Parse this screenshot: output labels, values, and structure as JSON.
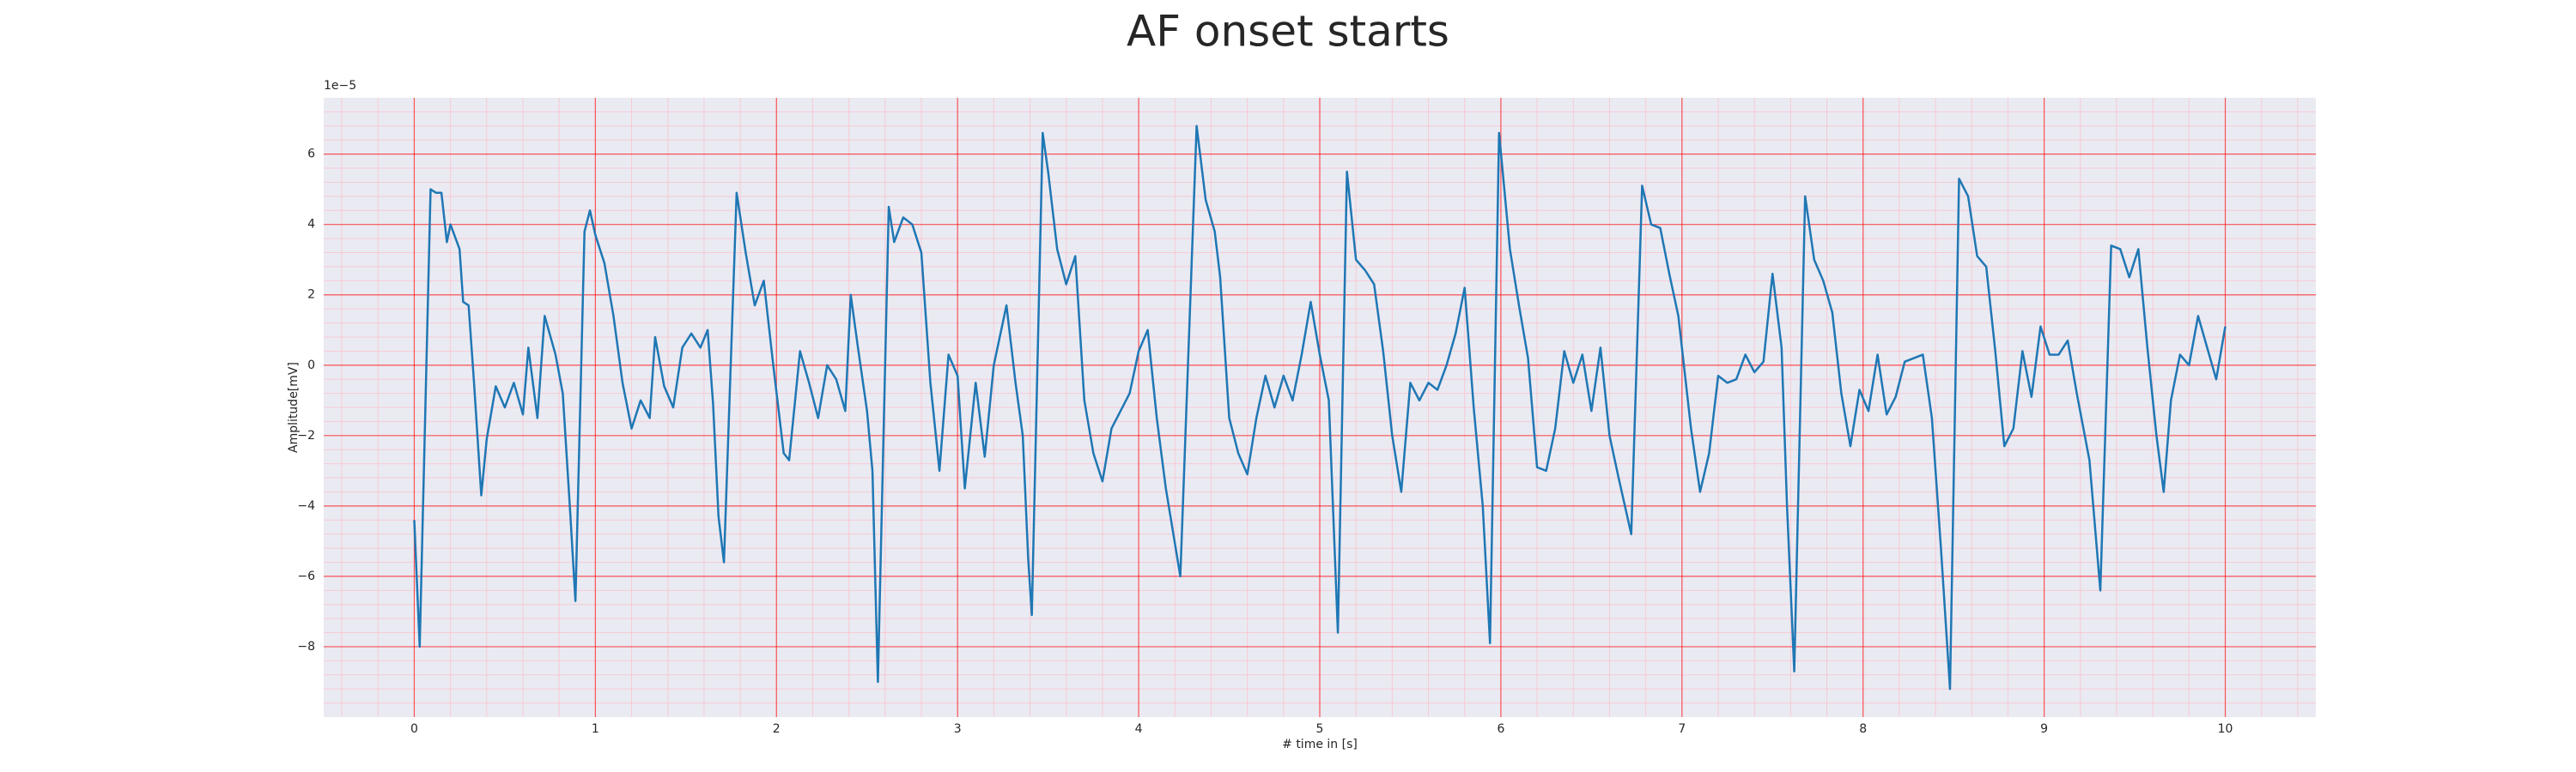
{
  "chart_data": {
    "type": "line",
    "title": "AF onset starts",
    "x_label": "# time in [s]",
    "y_label": "Amplitude[mV]",
    "y_offset_label": "1e−5",
    "x": [
      0,
      0.03,
      0.09,
      0.12,
      0.15,
      0.18,
      0.2,
      0.25,
      0.27,
      0.3,
      0.33,
      0.37,
      0.4,
      0.45,
      0.5,
      0.55,
      0.6,
      0.63,
      0.68,
      0.72,
      0.78,
      0.82,
      0.86,
      0.89,
      0.94,
      0.97,
      1.0,
      1.05,
      1.1,
      1.15,
      1.2,
      1.25,
      1.3,
      1.33,
      1.38,
      1.43,
      1.48,
      1.53,
      1.58,
      1.62,
      1.65,
      1.68,
      1.71,
      1.78,
      1.83,
      1.88,
      1.93,
      1.98,
      2.04,
      2.07,
      2.13,
      2.18,
      2.23,
      2.28,
      2.33,
      2.38,
      2.41,
      2.45,
      2.5,
      2.53,
      2.56,
      2.62,
      2.65,
      2.7,
      2.75,
      2.8,
      2.85,
      2.9,
      2.95,
      3.0,
      3.04,
      3.1,
      3.15,
      3.2,
      3.27,
      3.32,
      3.36,
      3.39,
      3.41,
      3.47,
      3.5,
      3.55,
      3.6,
      3.65,
      3.7,
      3.75,
      3.8,
      3.85,
      3.9,
      3.95,
      4.0,
      4.05,
      4.1,
      4.15,
      4.23,
      4.32,
      4.37,
      4.42,
      4.45,
      4.5,
      4.55,
      4.6,
      4.65,
      4.7,
      4.75,
      4.8,
      4.85,
      4.9,
      4.95,
      5.0,
      5.05,
      5.1,
      5.15,
      5.2,
      5.25,
      5.3,
      5.35,
      5.4,
      5.45,
      5.5,
      5.55,
      5.6,
      5.65,
      5.7,
      5.75,
      5.8,
      5.85,
      5.9,
      5.94,
      5.99,
      6.05,
      6.1,
      6.15,
      6.2,
      6.25,
      6.3,
      6.35,
      6.4,
      6.45,
      6.5,
      6.55,
      6.6,
      6.65,
      6.72,
      6.78,
      6.83,
      6.88,
      6.93,
      6.98,
      7.05,
      7.1,
      7.15,
      7.2,
      7.25,
      7.3,
      7.35,
      7.4,
      7.45,
      7.5,
      7.55,
      7.58,
      7.62,
      7.68,
      7.73,
      7.78,
      7.83,
      7.88,
      7.93,
      7.98,
      8.03,
      8.08,
      8.13,
      8.18,
      8.23,
      8.28,
      8.33,
      8.38,
      8.43,
      8.48,
      8.53,
      8.58,
      8.63,
      8.68,
      8.73,
      8.78,
      8.83,
      8.88,
      8.93,
      8.98,
      9.03,
      9.08,
      9.13,
      9.18,
      9.25,
      9.31,
      9.37,
      9.42,
      9.47,
      9.52,
      9.57,
      9.62,
      9.66,
      9.7,
      9.75,
      9.8,
      9.85,
      9.9,
      9.95,
      10.0
    ],
    "series": [
      {
        "color": "#1f77b4",
        "values": [
          -4.4,
          -8,
          5,
          4.9,
          4.9,
          3.5,
          4,
          3.3,
          1.8,
          1.7,
          -0.5,
          -3.7,
          -2.1,
          -0.6,
          -1.2,
          -0.5,
          -1.4,
          0.5,
          -1.5,
          1.4,
          0.3,
          -0.8,
          -4.1,
          -6.7,
          3.8,
          4.4,
          3.7,
          2.9,
          1.4,
          -0.5,
          -1.8,
          -1,
          -1.5,
          0.8,
          -0.6,
          -1.2,
          0.5,
          0.9,
          0.5,
          1,
          -1.1,
          -4.3,
          -5.6,
          4.9,
          3.2,
          1.7,
          2.4,
          0.1,
          -2.5,
          -2.7,
          0.4,
          -0.5,
          -1.5,
          0,
          -0.4,
          -1.3,
          2.0,
          0.5,
          -1.3,
          -3,
          -9,
          4.5,
          3.5,
          4.2,
          4,
          3.2,
          -0.5,
          -3,
          0.3,
          -0.3,
          -3.5,
          -0.5,
          -2.6,
          0,
          1.7,
          -0.5,
          -2,
          -5.5,
          -7.1,
          6.6,
          5.5,
          3.3,
          2.3,
          3.1,
          -1,
          -2.5,
          -3.3,
          -1.8,
          -1.3,
          -0.8,
          0.4,
          1,
          -1.5,
          -3.5,
          -6,
          6.8,
          4.7,
          3.8,
          2.5,
          -1.5,
          -2.5,
          -3.1,
          -1.5,
          -0.3,
          -1.2,
          -0.3,
          -1,
          0.3,
          1.8,
          0.3,
          -1,
          -7.6,
          5.5,
          3,
          2.7,
          2.3,
          0.4,
          -2,
          -3.6,
          -0.5,
          -1,
          -0.5,
          -0.7,
          0,
          0.9,
          2.2,
          -1.2,
          -4,
          -7.9,
          6.6,
          3.3,
          1.7,
          0.2,
          -2.9,
          -3,
          -1.8,
          0.4,
          -0.5,
          0.3,
          -1.3,
          0.5,
          -2,
          -3.2,
          -4.8,
          5.1,
          4,
          3.9,
          2.6,
          1.4,
          -1.8,
          -3.6,
          -2.5,
          -0.3,
          -0.5,
          -0.4,
          0.3,
          -0.2,
          0.1,
          2.6,
          0.5,
          -4,
          -8.7,
          4.8,
          3,
          2.4,
          1.5,
          -0.8,
          -2.3,
          -0.7,
          -1.3,
          0.3,
          -1.4,
          -0.9,
          0.1,
          0.2,
          0.3,
          -1.5,
          -5.2,
          -9.2,
          5.3,
          4.8,
          3.1,
          2.8,
          0.4,
          -2.3,
          -1.8,
          0.4,
          -0.9,
          1.1,
          0.3,
          0.3,
          0.7,
          -0.8,
          -2.7,
          -6.4,
          3.4,
          3.3,
          2.5,
          3.3,
          0.5,
          -2,
          -3.6,
          -1,
          0.3,
          0,
          1.4,
          0.5,
          -0.4,
          1.1
        ]
      }
    ],
    "xlim": [
      -0.5,
      10.5
    ],
    "ylim": [
      -10,
      7.6
    ],
    "xticks": [
      0,
      1,
      2,
      3,
      4,
      5,
      6,
      7,
      8,
      9,
      10
    ],
    "yticks": [
      {
        "value": -8,
        "label": "−8"
      },
      {
        "value": -6,
        "label": "−6"
      },
      {
        "value": -4,
        "label": "−4"
      },
      {
        "value": -2,
        "label": "−2"
      },
      0,
      2,
      4,
      6
    ],
    "grid": true,
    "minor_grid": true,
    "grid_color": "#ff0000",
    "minor_grid_color": "#ffb6c1",
    "background": "#eaeaf2"
  }
}
